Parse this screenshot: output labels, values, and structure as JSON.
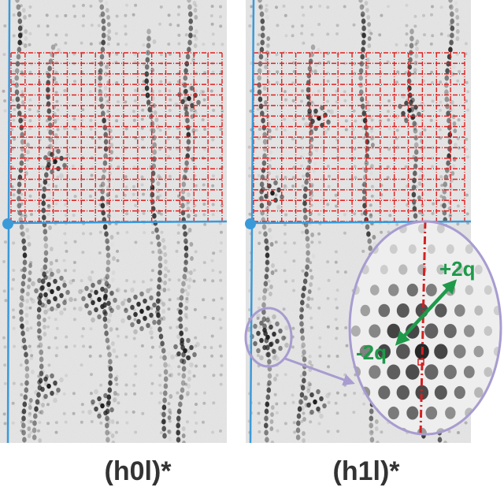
{
  "panels": [
    {
      "id": "left",
      "label": "(h0l)*"
    },
    {
      "id": "right",
      "label": "(h1l)*"
    }
  ],
  "inset": {
    "plus_label": "+2q",
    "minus_label": "-2q"
  },
  "colors": {
    "background": "#ffffff",
    "pattern_bg": "#e6e6e6",
    "grid": "#e02020",
    "axis": "#3a9ad9",
    "callout": "#a89cd0",
    "arrow": "#1f9a4a",
    "inset_axis": "#d42020",
    "text": "#333333"
  }
}
